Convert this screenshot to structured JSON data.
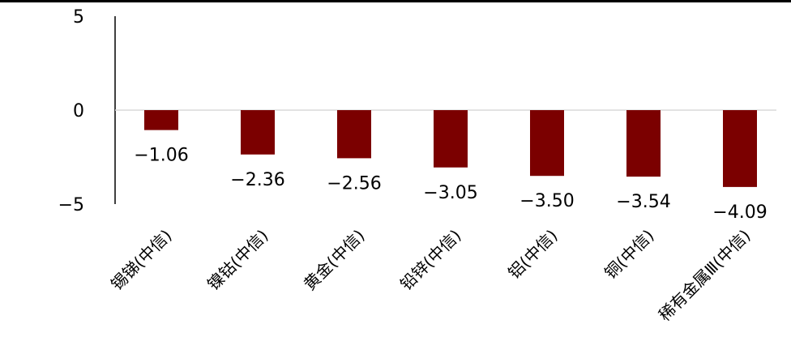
{
  "chart_data": {
    "type": "bar",
    "categories": [
      "锡锑(中信)",
      "镍钴(中信)",
      "黄金(中信)",
      "铅锌(中信)",
      "铝(中信)",
      "铜(中信)",
      "稀有金属Ⅲ(中信)"
    ],
    "values": [
      -1.06,
      -2.36,
      -2.56,
      -3.05,
      -3.5,
      -3.54,
      -4.09
    ],
    "data_labels": [
      "−1.06",
      "−2.36",
      "−2.56",
      "−3.05",
      "−3.50",
      "−3.54",
      "−4.09"
    ],
    "y_ticks": [
      {
        "value": 5,
        "label": "5"
      },
      {
        "value": 0,
        "label": "0"
      },
      {
        "value": -5,
        "label": "−5"
      }
    ],
    "title": "",
    "xlabel": "",
    "ylabel": "",
    "ylim": [
      -5,
      5
    ],
    "grid": false,
    "legend": "none",
    "bar_color": "#7b0000"
  }
}
